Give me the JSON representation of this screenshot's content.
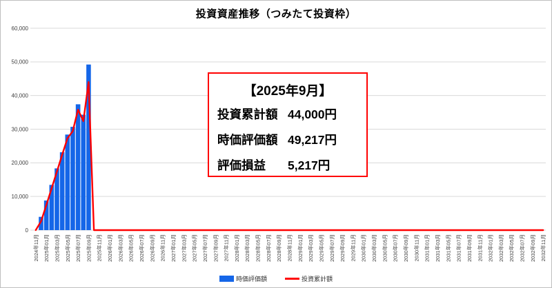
{
  "figure": {
    "title": "投資資産推移（つみたて投資枠）"
  },
  "annotation": {
    "header": "【2025年9月】",
    "rows": [
      {
        "label": "投資累計額",
        "value": "44,000円"
      },
      {
        "label": "時価評価額",
        "value": "49,217円"
      },
      {
        "label": "評価損益",
        "value": "5,217円"
      }
    ],
    "border_color": "#ff0000"
  },
  "legend": [
    {
      "label": "時価評価額",
      "type": "bar",
      "color": "#1566e8"
    },
    {
      "label": "投資累計額",
      "type": "line",
      "color": "#ff0000"
    }
  ],
  "colors": {
    "bar_blue": "#1566e8",
    "line_red": "#ff0000",
    "gridline": "#d9d9d9",
    "tick_text": "#404040",
    "frame": "#bfbfbf"
  },
  "chart_data": {
    "type": "bar+line",
    "title": "投資資産推移（つみたて投資枠）",
    "ylim": [
      0,
      60000
    ],
    "ytick_values": [
      0,
      10000,
      20000,
      30000,
      40000,
      50000,
      60000
    ],
    "ytick_labels": [
      "0",
      "10,000",
      "20,000",
      "30,000",
      "40,000",
      "50,000",
      "60,000"
    ],
    "grid": true,
    "legend_position": "bottom",
    "x_categories_total": 97,
    "x_first_month": "2024年11月",
    "x_last_month": "2032年11月",
    "xtick_every_n_months": 2,
    "xtick_labels": [
      "2024年11月",
      "2025年01月",
      "2025年03月",
      "2025年05月",
      "2025年07月",
      "2025年09月",
      "2025年11月",
      "2026年01月",
      "2026年03月",
      "2026年05月",
      "2026年07月",
      "2026年09月",
      "2026年11月",
      "2027年01月",
      "2027年03月",
      "2027年05月",
      "2027年07月",
      "2027年09月",
      "2027年11月",
      "2028年01月",
      "2028年03月",
      "2028年05月",
      "2028年07月",
      "2028年09月",
      "2028年11月",
      "2029年01月",
      "2029年03月",
      "2029年05月",
      "2029年07月",
      "2029年09月",
      "2029年11月",
      "2030年01月",
      "2030年03月",
      "2030年05月",
      "2030年07月",
      "2030年09月",
      "2030年11月",
      "2031年01月",
      "2031年03月",
      "2031年05月",
      "2031年07月",
      "2031年09月",
      "2031年11月",
      "2032年01月",
      "2032年03月",
      "2032年05月",
      "2032年07月",
      "2032年09月",
      "2032年11月"
    ],
    "series": [
      {
        "name": "時価評価額",
        "type": "bar",
        "color": "#1566e8",
        "start_index": 1,
        "months": [
          "2024年12月",
          "2025年01月",
          "2025年02月",
          "2025年03月",
          "2025年04月",
          "2025年05月",
          "2025年06月",
          "2025年07月",
          "2025年08月",
          "2025年09月"
        ],
        "values": [
          3950,
          8800,
          13450,
          18350,
          23150,
          28400,
          30700,
          37400,
          34300,
          49217
        ]
      },
      {
        "name": "投資累計額",
        "type": "line",
        "color": "#ff0000",
        "start_index": 0,
        "months": [
          "2024年11月",
          "2024年12月",
          "2025年01月",
          "2025年02月",
          "2025年03月",
          "2025年04月",
          "2025年05月",
          "2025年06月",
          "2025年07月",
          "2025年08月",
          "2025年09月"
        ],
        "values": [
          0,
          2600,
          7400,
          12400,
          17400,
          22400,
          27300,
          29400,
          35800,
          32400,
          44000
        ],
        "zero_after": true
      }
    ]
  }
}
